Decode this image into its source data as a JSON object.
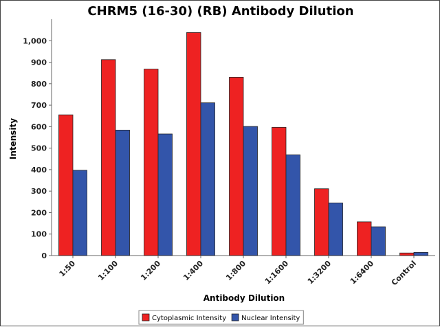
{
  "chart_data": {
    "type": "bar",
    "title": "CHRM5 (16-30) (RB) Antibody Dilution",
    "xlabel": "Antibody Dilution",
    "ylabel": "Intensity",
    "categories": [
      "1:50",
      "1:100",
      "1:200",
      "1:400",
      "1:800",
      "1:1600",
      "1:3200",
      "1:6400",
      "Control"
    ],
    "series": [
      {
        "name": "Cytoplasmic Intensity",
        "color": "#ee2222",
        "values": [
          655,
          912,
          868,
          1038,
          830,
          597,
          311,
          157,
          12
        ]
      },
      {
        "name": "Nuclear Intensity",
        "color": "#3355aa",
        "values": [
          397,
          584,
          566,
          711,
          601,
          469,
          245,
          134,
          15
        ]
      }
    ],
    "ylim": [
      0,
      1100
    ],
    "yticks": [
      0,
      100,
      200,
      300,
      400,
      500,
      600,
      700,
      800,
      900,
      1000
    ],
    "ytick_labels": [
      "0",
      "100",
      "200",
      "300",
      "400",
      "500",
      "600",
      "700",
      "800",
      "900",
      "1,000"
    ],
    "grid": false,
    "legend_position": "bottom"
  }
}
